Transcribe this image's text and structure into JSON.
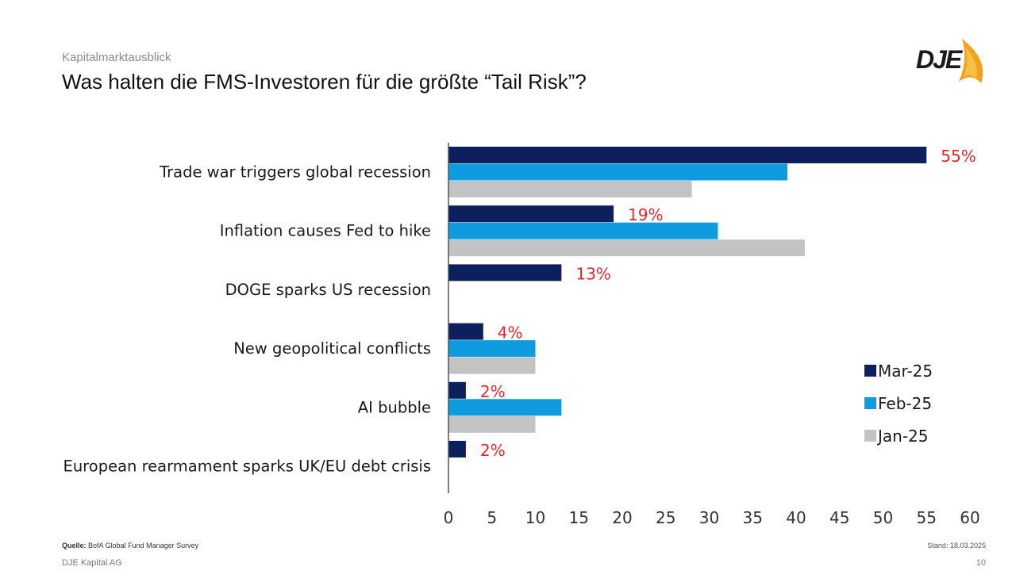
{
  "header": {
    "kicker": "Kapitalmarktausblick",
    "title": "Was halten die FMS-Investoren für die größte “Tail Risk”?",
    "logo_text": "DJE"
  },
  "footer": {
    "source_label": "Quelle:",
    "source_text": "BofA Global Fund Manager Survey",
    "company": "DJE Kapital AG",
    "stand": "Stand: 18.03.2025",
    "page": "10"
  },
  "chart_data": {
    "type": "bar",
    "orientation": "horizontal",
    "categories": [
      "Trade war triggers global recession",
      "Inflation causes Fed to hike",
      "DOGE sparks US recession",
      "New geopolitical conflicts",
      "AI bubble",
      "European rearmament sparks UK/EU debt crisis"
    ],
    "series": [
      {
        "name": "Mar-25",
        "color": "#0d1f5c",
        "values": [
          55,
          19,
          13,
          4,
          2,
          2
        ]
      },
      {
        "name": "Feb-25",
        "color": "#0e9be0",
        "values": [
          39,
          31,
          null,
          10,
          13,
          null
        ]
      },
      {
        "name": "Jan-25",
        "color": "#c3c3c3",
        "values": [
          28,
          41,
          null,
          10,
          10,
          null
        ]
      }
    ],
    "data_labels": [
      "55%",
      "19%",
      "13%",
      "4%",
      "2%",
      "2%"
    ],
    "data_label_color": "#e8262a",
    "xlim": [
      0,
      60
    ],
    "xticks": [
      0,
      5,
      10,
      15,
      20,
      25,
      30,
      35,
      40,
      45,
      50,
      55,
      60
    ],
    "legend_position": "right",
    "grid": false
  }
}
